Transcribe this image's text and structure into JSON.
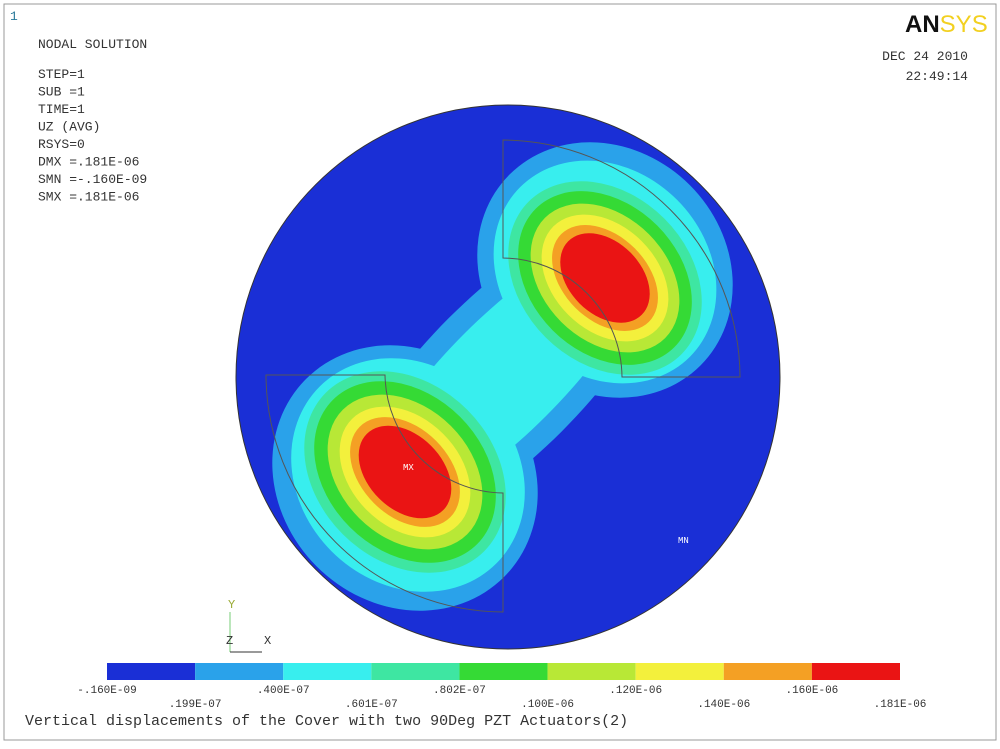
{
  "window_number": "1",
  "logo": {
    "part1": "AN",
    "part2": "SYS"
  },
  "info": [
    "NODAL SOLUTION",
    "STEP=1",
    "SUB =1",
    "TIME=1",
    "UZ        (AVG)",
    "RSYS=0",
    "DMX =.181E-06",
    "SMN =-.160E-09",
    "SMX =.181E-06"
  ],
  "date": "DEC 24 2010",
  "time": "22:49:14",
  "markers": {
    "max": "MX",
    "min": "MN"
  },
  "triad": {
    "y": "Y",
    "z": "Z",
    "x": "X"
  },
  "legend": {
    "colors": [
      "#1a2fd6",
      "#2aa2ea",
      "#38eeee",
      "#3ee6a2",
      "#35da35",
      "#b8e836",
      "#f3f03c",
      "#f4a024",
      "#ea1414"
    ],
    "labels": [
      "-.160E-09",
      ".199E-07",
      ".400E-07",
      ".601E-07",
      ".802E-07",
      ".100E-06",
      ".120E-06",
      ".140E-06",
      ".160E-06",
      ".181E-06"
    ]
  },
  "footer": "Vertical displacements of the Cover with two 90Deg PZT Actuators(2)"
}
